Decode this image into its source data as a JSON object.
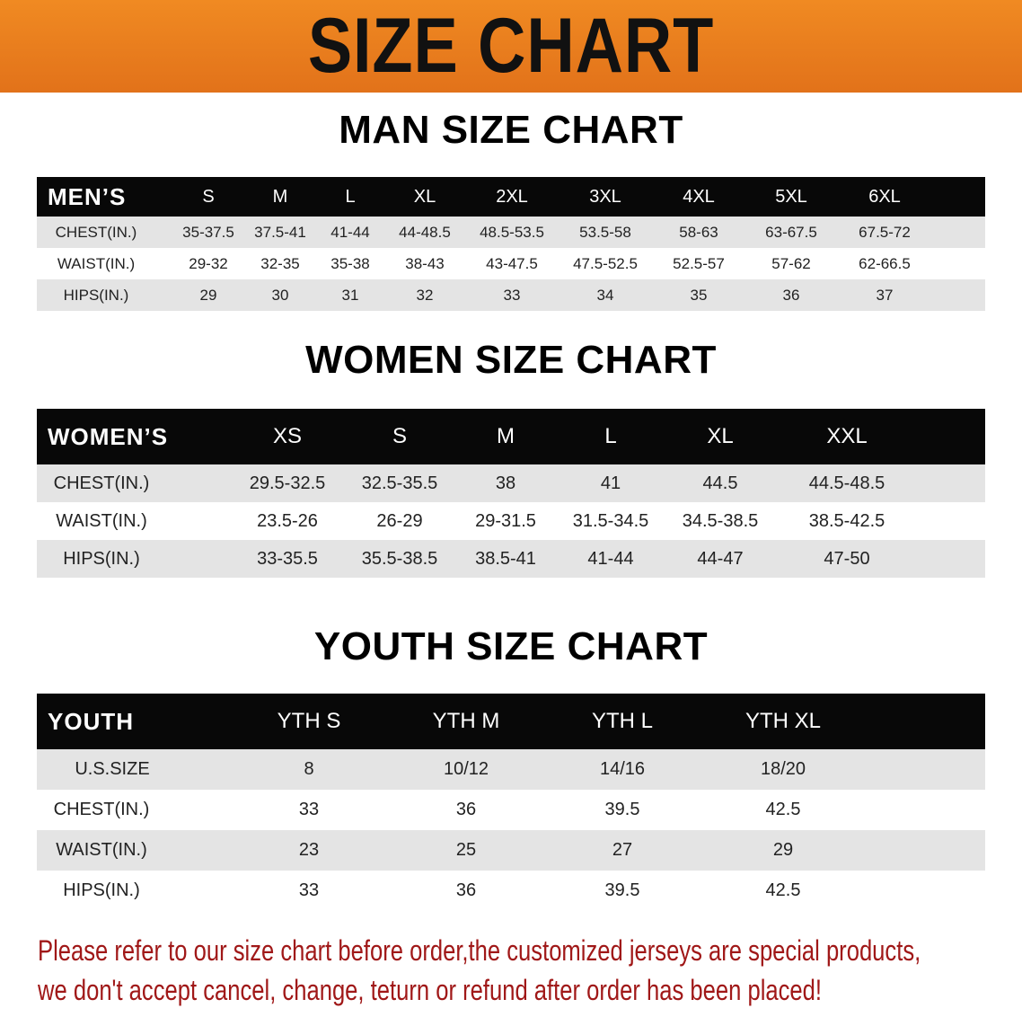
{
  "banner": {
    "title": "SIZE CHART",
    "color": "#e8781a"
  },
  "men": {
    "title": "MAN SIZE CHART",
    "header_label": "MEN’S",
    "sizes": [
      "S",
      "M",
      "L",
      "XL",
      "2XL",
      "3XL",
      "4XL",
      "5XL",
      "6XL"
    ],
    "rows": [
      {
        "label": "CHEST(IN.)",
        "values": [
          "35-37.5",
          "37.5-41",
          "41-44",
          "44-48.5",
          "48.5-53.5",
          "53.5-58",
          "58-63",
          "63-67.5",
          "67.5-72"
        ]
      },
      {
        "label": "WAIST(IN.)",
        "values": [
          "29-32",
          "32-35",
          "35-38",
          "38-43",
          "43-47.5",
          "47.5-52.5",
          "52.5-57",
          "57-62",
          "62-66.5"
        ]
      },
      {
        "label": "HIPS(IN.)",
        "values": [
          "29",
          "30",
          "31",
          "32",
          "33",
          "34",
          "35",
          "36",
          "37"
        ]
      }
    ]
  },
  "women": {
    "title": "WOMEN SIZE CHART",
    "header_label": "WOMEN’S",
    "sizes": [
      "XS",
      "S",
      "M",
      "L",
      "XL",
      "XXL"
    ],
    "rows": [
      {
        "label": "CHEST(IN.)",
        "values": [
          "29.5-32.5",
          "32.5-35.5",
          "38",
          "41",
          "44.5",
          "44.5-48.5"
        ]
      },
      {
        "label": "WAIST(IN.)",
        "values": [
          "23.5-26",
          "26-29",
          "29-31.5",
          "31.5-34.5",
          "34.5-38.5",
          "38.5-42.5"
        ]
      },
      {
        "label": "HIPS(IN.)",
        "values": [
          "33-35.5",
          "35.5-38.5",
          "38.5-41",
          "41-44",
          "44-47",
          "47-50"
        ]
      }
    ]
  },
  "youth": {
    "title": "YOUTH SIZE CHART",
    "header_label": "YOUTH",
    "sizes": [
      "YTH S",
      "YTH M",
      "YTH L",
      "YTH XL"
    ],
    "rows": [
      {
        "label": "U.S.SIZE",
        "values": [
          "8",
          "10/12",
          "14/16",
          "18/20"
        ]
      },
      {
        "label": "CHEST(IN.)",
        "values": [
          "33",
          "36",
          "39.5",
          "42.5"
        ]
      },
      {
        "label": "WAIST(IN.)",
        "values": [
          "23",
          "25",
          "27",
          "29"
        ]
      },
      {
        "label": "HIPS(IN.)",
        "values": [
          "33",
          "36",
          "39.5",
          "42.5"
        ]
      }
    ]
  },
  "notice": {
    "line1": "Please refer to our size chart before order,the customized jerseys are special products,",
    "line2": "we don't accept cancel, change, teturn or refund after order has been placed!",
    "color": "#a01818"
  }
}
